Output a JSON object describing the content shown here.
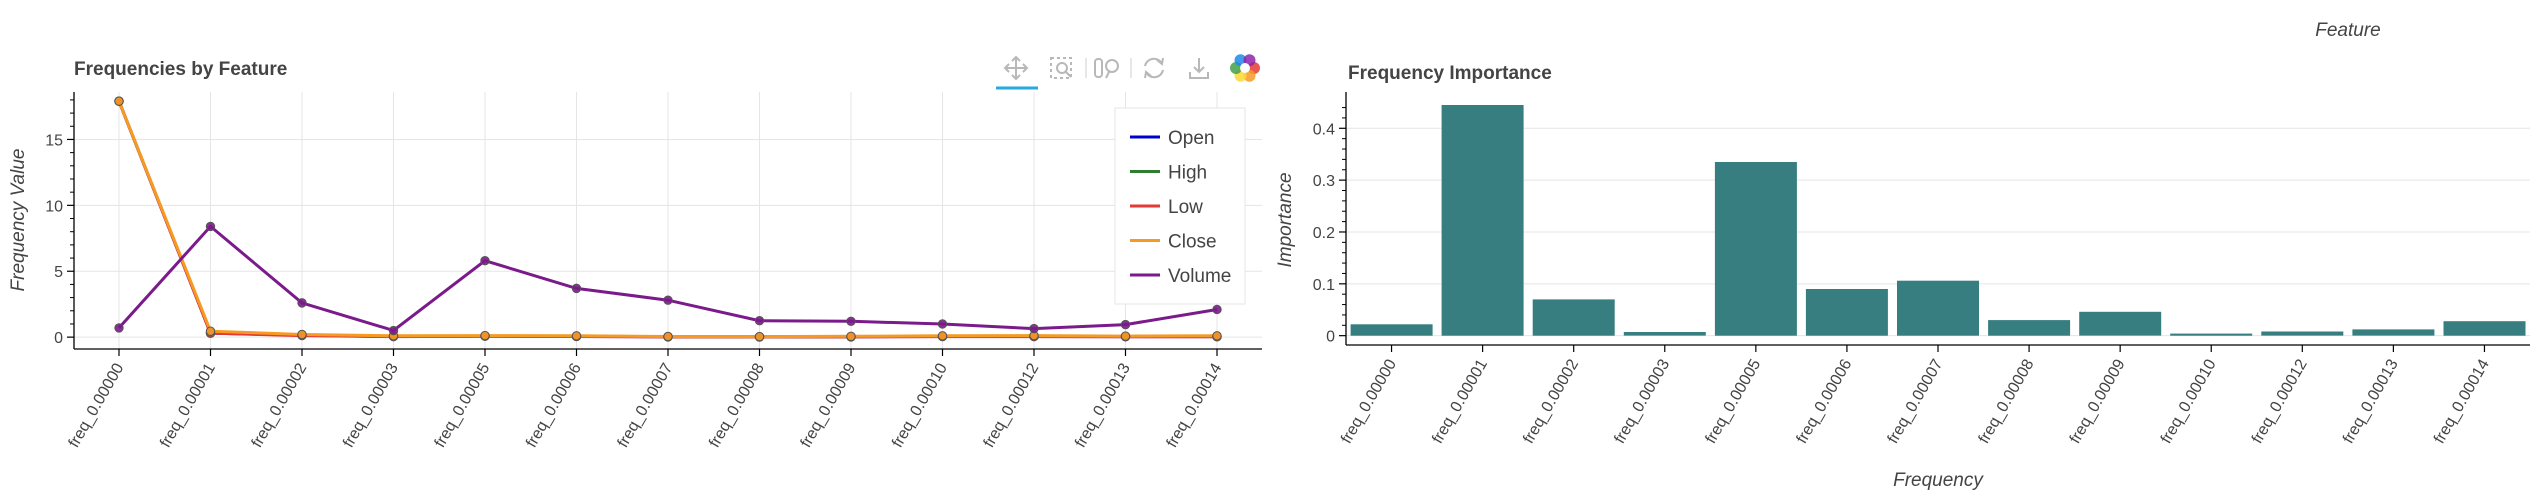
{
  "toolbar": {
    "tools": [
      {
        "name": "pan-tool-icon",
        "active": true
      },
      {
        "name": "box-zoom-tool-icon"
      },
      {
        "name": "wheel-zoom-tool-icon"
      },
      {
        "name": "reset-tool-icon"
      },
      {
        "name": "save-tool-icon"
      },
      {
        "name": "bokeh-logo-icon"
      }
    ],
    "active_color": "#26aae1"
  },
  "chart_data": [
    {
      "type": "line",
      "title": "Frequencies by Feature",
      "xlabel": "",
      "ylabel": "Frequency Value",
      "categories": [
        "freq_0.00000",
        "freq_0.00001",
        "freq_0.00002",
        "freq_0.00003",
        "freq_0.00005",
        "freq_0.00006",
        "freq_0.00007",
        "freq_0.00008",
        "freq_0.00009",
        "freq_0.00010",
        "freq_0.00012",
        "freq_0.00013",
        "freq_0.00014"
      ],
      "yticks": [
        0,
        5,
        10,
        15
      ],
      "ylim": [
        -0.9,
        18.6
      ],
      "grid": true,
      "legend_position": "top-right",
      "series": [
        {
          "name": "Open",
          "color": "#0000cc",
          "values": [
            17.9,
            0.3,
            0.15,
            0.05,
            0.08,
            0.05,
            0.03,
            0.02,
            0.03,
            0.05,
            0.05,
            0.04,
            0.04
          ]
        },
        {
          "name": "High",
          "color": "#2e7d32",
          "values": [
            17.9,
            0.35,
            0.15,
            0.05,
            0.08,
            0.06,
            0.03,
            0.02,
            0.03,
            0.06,
            0.05,
            0.05,
            0.05
          ]
        },
        {
          "name": "Low",
          "color": "#e53935",
          "values": [
            17.9,
            0.3,
            0.12,
            0.04,
            0.07,
            0.05,
            0.02,
            0.02,
            0.02,
            0.04,
            0.04,
            0.03,
            0.03
          ]
        },
        {
          "name": "Close",
          "color": "#f59a23",
          "values": [
            17.9,
            0.45,
            0.2,
            0.1,
            0.12,
            0.1,
            0.05,
            0.04,
            0.06,
            0.1,
            0.12,
            0.08,
            0.1
          ]
        },
        {
          "name": "Volume",
          "color": "#7b1a8b",
          "values": [
            0.7,
            8.4,
            2.6,
            0.5,
            5.8,
            3.7,
            2.8,
            1.25,
            1.2,
            1.0,
            0.65,
            0.95,
            2.1
          ]
        }
      ]
    },
    {
      "type": "bar",
      "title": "Frequency Importance",
      "xlabel": "Frequency",
      "ylabel": "Importance",
      "legend_title": "Feature",
      "categories": [
        "freq_0.00000",
        "freq_0.00001",
        "freq_0.00002",
        "freq_0.00003",
        "freq_0.00005",
        "freq_0.00006",
        "freq_0.00007",
        "freq_0.00008",
        "freq_0.00009",
        "freq_0.00010",
        "freq_0.00012",
        "freq_0.00013",
        "freq_0.00014"
      ],
      "values": [
        0.022,
        0.445,
        0.07,
        0.007,
        0.335,
        0.09,
        0.106,
        0.03,
        0.046,
        0.004,
        0.008,
        0.012,
        0.028
      ],
      "yticks": [
        0,
        0.1,
        0.2,
        0.3,
        0.4
      ],
      "ytick_labels": [
        "0",
        "0.1",
        "0.2",
        "0.3",
        "0.4"
      ],
      "ylim": [
        -0.018,
        0.47
      ],
      "grid": true,
      "bar_color": "#367e7f"
    }
  ]
}
